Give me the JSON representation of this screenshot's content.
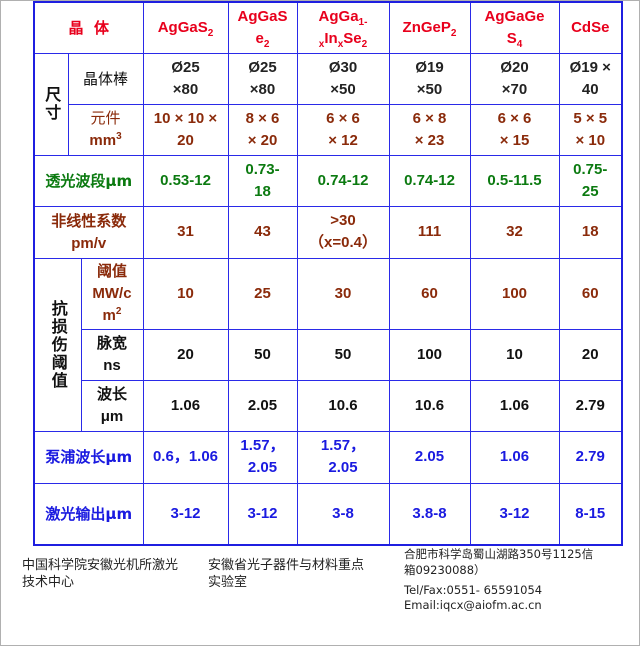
{
  "header": {
    "label": "晶  体",
    "crystals": [
      {
        "base": "AgGaS",
        "sub": "2",
        "pre": ""
      },
      {
        "base": "AgGaS",
        "line2": "e",
        "sub": "2"
      },
      {
        "l1": "AgGa",
        "l1sub": "1-",
        "l2a": "x",
        "l2b": "In",
        "l2c": "x",
        "l2d": "Se",
        "l2e": "2"
      },
      {
        "base": "ZnGeP",
        "sub": "2"
      },
      {
        "base": "AgGaGe",
        "line2": "S",
        "sub": "4"
      },
      {
        "base": "CdSe"
      }
    ]
  },
  "size": {
    "label": "尺寸",
    "rod": {
      "label": "晶体棒",
      "values": [
        [
          "Ø25",
          "×80"
        ],
        [
          "Ø25",
          "×80"
        ],
        [
          "Ø30",
          "×50"
        ],
        [
          "Ø19",
          "×50"
        ],
        [
          "Ø20",
          "×70"
        ],
        [
          "Ø19 ×",
          "40"
        ]
      ]
    },
    "element": {
      "label": "元件",
      "unit": "mm",
      "unit_sup": "3",
      "values": [
        [
          "10 × 10 ×",
          "20"
        ],
        [
          "8 × 6",
          "× 20"
        ],
        [
          "6 × 6",
          "× 12"
        ],
        [
          "6 × 8",
          "× 23"
        ],
        [
          "6 × 6",
          "× 15"
        ],
        [
          "5 × 5",
          "× 10"
        ]
      ]
    }
  },
  "transmission": {
    "label": "透光波段μm",
    "values": [
      [
        "0.53-12"
      ],
      [
        "0.73-",
        "18"
      ],
      [
        "0.74-12"
      ],
      [
        "0.74-12"
      ],
      [
        "0.5-11.5"
      ],
      [
        "0.75-",
        "25"
      ]
    ]
  },
  "nonlinear": {
    "label": "非线性系数",
    "unit": "pm/v",
    "values": [
      [
        "31"
      ],
      [
        "43"
      ],
      [
        ">30",
        "（x=0.4）"
      ],
      [
        "111"
      ],
      [
        "32"
      ],
      [
        "18"
      ]
    ]
  },
  "damage": {
    "label": "抗损伤阈值",
    "threshold": {
      "label": "阈值",
      "unit": "MW/c",
      "unit2": "m",
      "unit_sup": "2",
      "values": [
        "10",
        "25",
        "30",
        "60",
        "100",
        "60"
      ]
    },
    "pulse": {
      "label": "脉宽",
      "unit": "ns",
      "values": [
        "20",
        "50",
        "50",
        "100",
        "10",
        "20"
      ]
    },
    "wavelength": {
      "label": "波长",
      "unit": "μm",
      "values": [
        "1.06",
        "2.05",
        "10.6",
        "10.6",
        "1.06",
        "2.79"
      ]
    }
  },
  "pump": {
    "label": "泵浦波长μm",
    "values": [
      [
        "0.6，1.06"
      ],
      [
        "1.57，",
        "2.05"
      ],
      [
        "1.57，",
        "2.05"
      ],
      [
        "2.05"
      ],
      [
        "1.06"
      ],
      [
        "2.79"
      ]
    ]
  },
  "output": {
    "label": "激光输出μm",
    "values": [
      "3-12",
      "3-12",
      "3-8",
      "3.8-8",
      "3-12",
      "8-15"
    ]
  },
  "footer": {
    "org1": "中国科学院安徽光机所激光技术中心",
    "org2": "安徽省光子器件与材料重点实验室",
    "address": "合肥市科学岛蜀山湖路350号1125信箱09230088）",
    "tel": "Tel/Fax:0551- 65591054",
    "email": "Email:iqcx@aiofm.ac.cn"
  }
}
